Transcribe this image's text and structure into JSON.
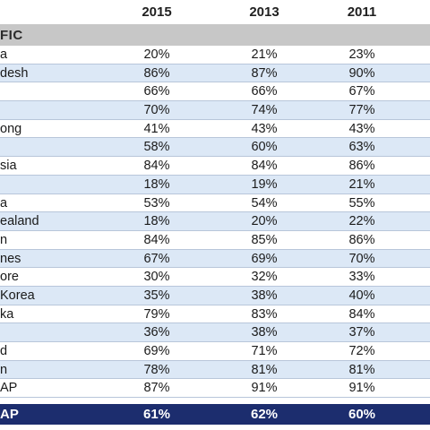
{
  "header": {
    "years": [
      "2015",
      "2013",
      "2011"
    ]
  },
  "region": {
    "label": "FIC"
  },
  "rows": [
    {
      "label": "a",
      "values": [
        "20%",
        "21%",
        "23%"
      ]
    },
    {
      "label": "desh",
      "values": [
        "86%",
        "87%",
        "90%"
      ]
    },
    {
      "label": "",
      "values": [
        "66%",
        "66%",
        "67%"
      ]
    },
    {
      "label": "",
      "values": [
        "70%",
        "74%",
        "77%"
      ]
    },
    {
      "label": "ong",
      "values": [
        "41%",
        "43%",
        "43%"
      ]
    },
    {
      "label": "",
      "values": [
        "58%",
        "60%",
        "63%"
      ]
    },
    {
      "label": "sia",
      "values": [
        "84%",
        "84%",
        "86%"
      ]
    },
    {
      "label": "",
      "values": [
        "18%",
        "19%",
        "21%"
      ]
    },
    {
      "label": "a",
      "values": [
        "53%",
        "54%",
        "55%"
      ]
    },
    {
      "label": "ealand",
      "values": [
        "18%",
        "20%",
        "22%"
      ]
    },
    {
      "label": "n",
      "values": [
        "84%",
        "85%",
        "86%"
      ]
    },
    {
      "label": "nes",
      "values": [
        "67%",
        "69%",
        "70%"
      ]
    },
    {
      "label": "ore",
      "values": [
        "30%",
        "32%",
        "33%"
      ]
    },
    {
      "label": "Korea",
      "values": [
        "35%",
        "38%",
        "40%"
      ]
    },
    {
      "label": "ka",
      "values": [
        "79%",
        "83%",
        "84%"
      ]
    },
    {
      "label": "",
      "values": [
        "36%",
        "38%",
        "37%"
      ]
    },
    {
      "label": "d",
      "values": [
        "69%",
        "71%",
        "72%"
      ]
    },
    {
      "label": "n",
      "values": [
        "78%",
        "81%",
        "81%"
      ]
    },
    {
      "label": "AP",
      "values": [
        "87%",
        "91%",
        "91%"
      ]
    }
  ],
  "total": {
    "label": "AP",
    "values": [
      "61%",
      "62%",
      "60%"
    ]
  },
  "colors": {
    "region_band": "#c7c7c7",
    "row_alt": "#dce8f6",
    "total_band": "#1c2d6e",
    "total_text": "#ffffff"
  }
}
